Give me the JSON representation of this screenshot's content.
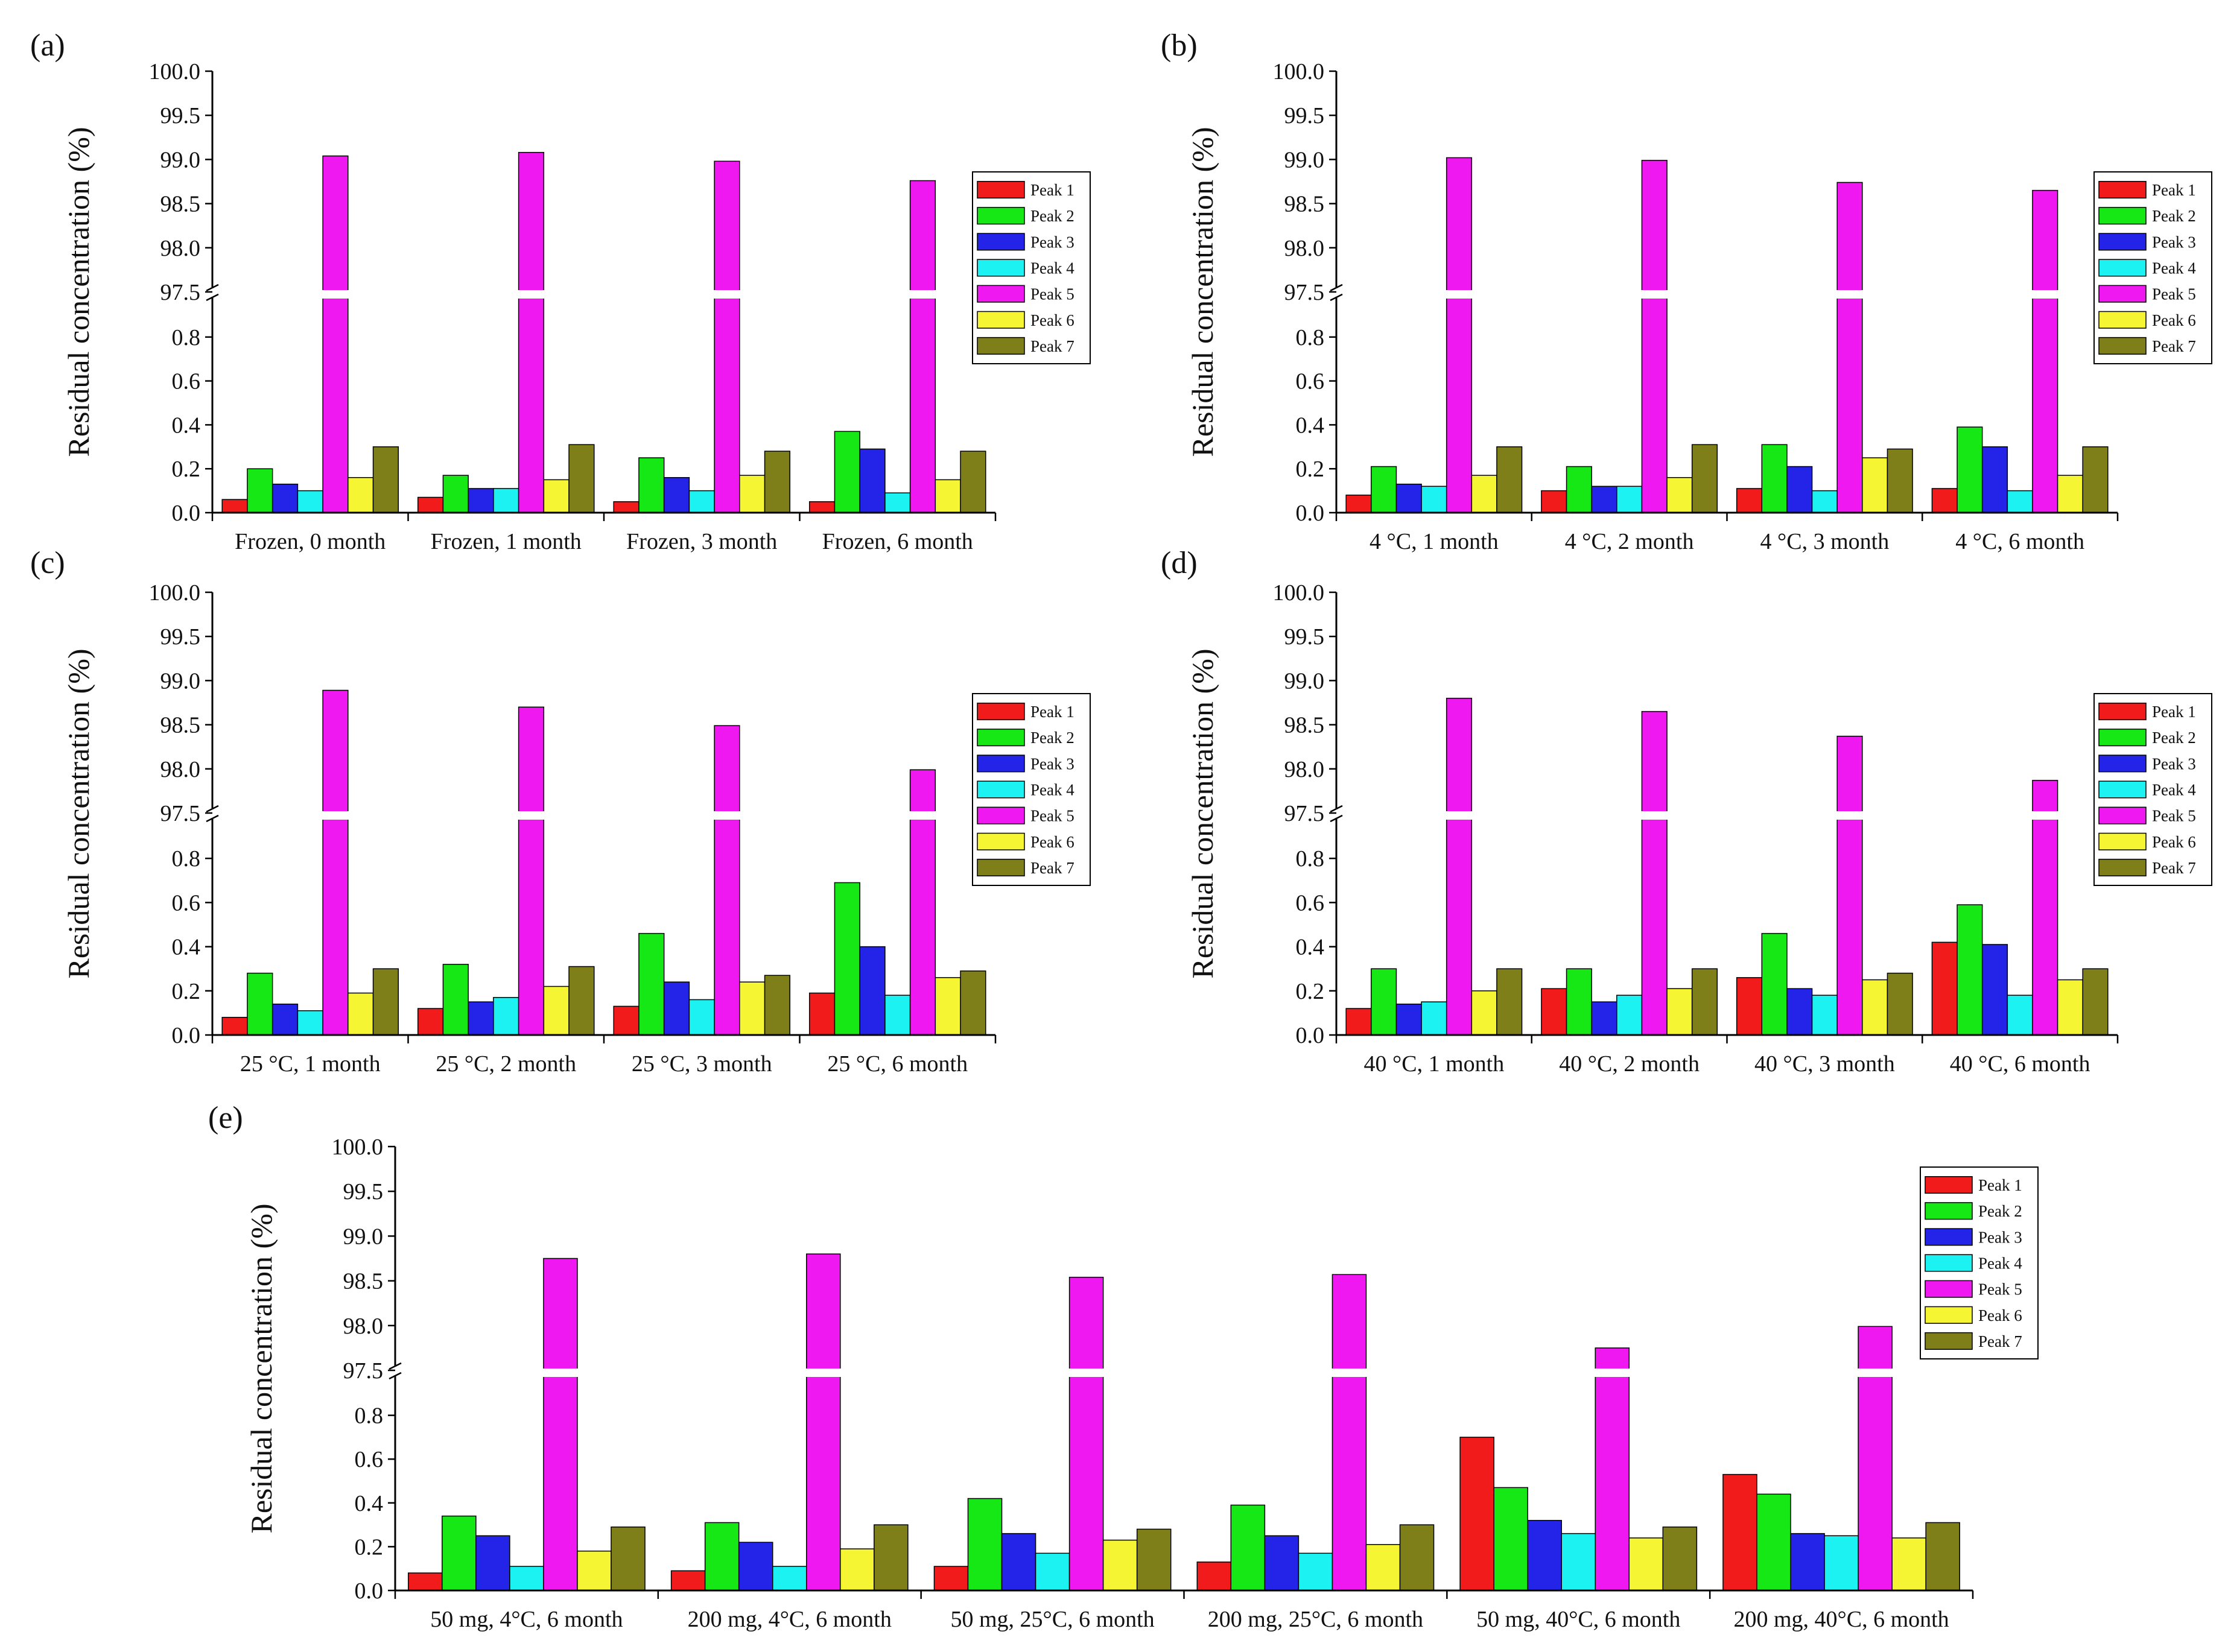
{
  "chart_data": [
    {
      "type": "bar",
      "panel_label": "(a)",
      "ylabel": "Residual concentration (%)",
      "xlabel": "",
      "ylim_lower": [
        0.0,
        1.0
      ],
      "ylim_upper": [
        97.5,
        100.0
      ],
      "yticks_lower": [
        "0.0",
        "0.2",
        "0.4",
        "0.6",
        "0.8"
      ],
      "yticks_upper": [
        "97.5",
        "98.0",
        "98.5",
        "99.0",
        "99.5",
        "100.0"
      ],
      "legend_position": "right",
      "categories": [
        "Frozen, 0 month",
        "Frozen, 1 month",
        "Frozen, 3 month",
        "Frozen, 6 month"
      ],
      "series": [
        {
          "name": "Peak 1",
          "color": "#f21b1b",
          "values": [
            0.06,
            0.07,
            0.05,
            0.05
          ]
        },
        {
          "name": "Peak 2",
          "color": "#15e815",
          "values": [
            0.2,
            0.17,
            0.25,
            0.37
          ]
        },
        {
          "name": "Peak 3",
          "color": "#2424e8",
          "values": [
            0.13,
            0.11,
            0.16,
            0.29
          ]
        },
        {
          "name": "Peak 4",
          "color": "#1cf2f2",
          "values": [
            0.1,
            0.11,
            0.1,
            0.09
          ]
        },
        {
          "name": "Peak 5",
          "color": "#f018f0",
          "values": [
            99.04,
            99.08,
            98.98,
            98.76
          ]
        },
        {
          "name": "Peak 6",
          "color": "#f5f534",
          "values": [
            0.16,
            0.15,
            0.17,
            0.15
          ]
        },
        {
          "name": "Peak 7",
          "color": "#7f7f1a",
          "values": [
            0.3,
            0.31,
            0.28,
            0.28
          ]
        }
      ]
    },
    {
      "type": "bar",
      "panel_label": "(b)",
      "ylabel": "Residual concentration (%)",
      "xlabel": "",
      "ylim_lower": [
        0.0,
        1.0
      ],
      "ylim_upper": [
        97.5,
        100.0
      ],
      "yticks_lower": [
        "0.0",
        "0.2",
        "0.4",
        "0.6",
        "0.8"
      ],
      "yticks_upper": [
        "97.5",
        "98.0",
        "98.5",
        "99.0",
        "99.5",
        "100.0"
      ],
      "legend_position": "right",
      "categories": [
        "4 °C, 1 month",
        "4 °C, 2 month",
        "4 °C, 3 month",
        "4 °C, 6 month"
      ],
      "series": [
        {
          "name": "Peak 1",
          "color": "#f21b1b",
          "values": [
            0.08,
            0.1,
            0.11,
            0.11
          ]
        },
        {
          "name": "Peak 2",
          "color": "#15e815",
          "values": [
            0.21,
            0.21,
            0.31,
            0.39
          ]
        },
        {
          "name": "Peak 3",
          "color": "#2424e8",
          "values": [
            0.13,
            0.12,
            0.21,
            0.3
          ]
        },
        {
          "name": "Peak 4",
          "color": "#1cf2f2",
          "values": [
            0.12,
            0.12,
            0.1,
            0.1
          ]
        },
        {
          "name": "Peak 5",
          "color": "#f018f0",
          "values": [
            99.02,
            98.99,
            98.74,
            98.65
          ]
        },
        {
          "name": "Peak 6",
          "color": "#f5f534",
          "values": [
            0.17,
            0.16,
            0.25,
            0.17
          ]
        },
        {
          "name": "Peak 7",
          "color": "#7f7f1a",
          "values": [
            0.3,
            0.31,
            0.29,
            0.3
          ]
        }
      ]
    },
    {
      "type": "bar",
      "panel_label": "(c)",
      "ylabel": "Residual concentration (%)",
      "xlabel": "",
      "ylim_lower": [
        0.0,
        1.0
      ],
      "ylim_upper": [
        97.5,
        100.0
      ],
      "yticks_lower": [
        "0.0",
        "0.2",
        "0.4",
        "0.6",
        "0.8"
      ],
      "yticks_upper": [
        "97.5",
        "98.0",
        "98.5",
        "99.0",
        "99.5",
        "100.0"
      ],
      "legend_position": "right",
      "categories": [
        "25 °C, 1 month",
        "25 °C, 2 month",
        "25 °C, 3 month",
        "25 °C, 6 month"
      ],
      "series": [
        {
          "name": "Peak 1",
          "color": "#f21b1b",
          "values": [
            0.08,
            0.12,
            0.13,
            0.19
          ]
        },
        {
          "name": "Peak 2",
          "color": "#15e815",
          "values": [
            0.28,
            0.32,
            0.46,
            0.69
          ]
        },
        {
          "name": "Peak 3",
          "color": "#2424e8",
          "values": [
            0.14,
            0.15,
            0.24,
            0.4
          ]
        },
        {
          "name": "Peak 4",
          "color": "#1cf2f2",
          "values": [
            0.11,
            0.17,
            0.16,
            0.18
          ]
        },
        {
          "name": "Peak 5",
          "color": "#f018f0",
          "values": [
            98.89,
            98.7,
            98.49,
            97.99
          ]
        },
        {
          "name": "Peak 6",
          "color": "#f5f534",
          "values": [
            0.19,
            0.22,
            0.24,
            0.26
          ]
        },
        {
          "name": "Peak 7",
          "color": "#7f7f1a",
          "values": [
            0.3,
            0.31,
            0.27,
            0.29
          ]
        }
      ]
    },
    {
      "type": "bar",
      "panel_label": "(d)",
      "ylabel": "Residual concentration (%)",
      "xlabel": "",
      "ylim_lower": [
        0.0,
        1.0
      ],
      "ylim_upper": [
        97.5,
        100.0
      ],
      "yticks_lower": [
        "0.0",
        "0.2",
        "0.4",
        "0.6",
        "0.8"
      ],
      "yticks_upper": [
        "97.5",
        "98.0",
        "98.5",
        "99.0",
        "99.5",
        "100.0"
      ],
      "legend_position": "right",
      "categories": [
        "40 °C, 1 month",
        "40 °C, 2 month",
        "40 °C, 3 month",
        "40 °C, 6 month"
      ],
      "series": [
        {
          "name": "Peak 1",
          "color": "#f21b1b",
          "values": [
            0.12,
            0.21,
            0.26,
            0.42
          ]
        },
        {
          "name": "Peak 2",
          "color": "#15e815",
          "values": [
            0.3,
            0.3,
            0.46,
            0.59
          ]
        },
        {
          "name": "Peak 3",
          "color": "#2424e8",
          "values": [
            0.14,
            0.15,
            0.21,
            0.41
          ]
        },
        {
          "name": "Peak 4",
          "color": "#1cf2f2",
          "values": [
            0.15,
            0.18,
            0.18,
            0.18
          ]
        },
        {
          "name": "Peak 5",
          "color": "#f018f0",
          "values": [
            98.8,
            98.65,
            98.37,
            97.87
          ]
        },
        {
          "name": "Peak 6",
          "color": "#f5f534",
          "values": [
            0.2,
            0.21,
            0.25,
            0.25
          ]
        },
        {
          "name": "Peak 7",
          "color": "#7f7f1a",
          "values": [
            0.3,
            0.3,
            0.28,
            0.3
          ]
        }
      ]
    },
    {
      "type": "bar",
      "panel_label": "(e)",
      "ylabel": "Residual concentration (%)",
      "xlabel": "",
      "ylim_lower": [
        0.0,
        1.0
      ],
      "ylim_upper": [
        97.5,
        100.0
      ],
      "yticks_lower": [
        "0.0",
        "0.2",
        "0.4",
        "0.6",
        "0.8"
      ],
      "yticks_upper": [
        "97.5",
        "98.0",
        "98.5",
        "99.0",
        "99.5",
        "100.0"
      ],
      "legend_position": "top-right",
      "categories": [
        "50 mg, 4°C, 6 month",
        "200 mg, 4°C, 6 month",
        "50 mg, 25°C, 6 month",
        "200 mg, 25°C, 6 month",
        "50 mg, 40°C, 6 month",
        "200 mg, 40°C, 6 month"
      ],
      "series": [
        {
          "name": "Peak 1",
          "color": "#f21b1b",
          "values": [
            0.08,
            0.09,
            0.11,
            0.13,
            0.7,
            0.53
          ]
        },
        {
          "name": "Peak 2",
          "color": "#15e815",
          "values": [
            0.34,
            0.31,
            0.42,
            0.39,
            0.47,
            0.44
          ]
        },
        {
          "name": "Peak 3",
          "color": "#2424e8",
          "values": [
            0.25,
            0.22,
            0.26,
            0.25,
            0.32,
            0.26
          ]
        },
        {
          "name": "Peak 4",
          "color": "#1cf2f2",
          "values": [
            0.11,
            0.11,
            0.17,
            0.17,
            0.26,
            0.25
          ]
        },
        {
          "name": "Peak 5",
          "color": "#f018f0",
          "values": [
            98.75,
            98.8,
            98.54,
            98.57,
            97.75,
            97.99
          ]
        },
        {
          "name": "Peak 6",
          "color": "#f5f534",
          "values": [
            0.18,
            0.19,
            0.23,
            0.21,
            0.24,
            0.24
          ]
        },
        {
          "name": "Peak 7",
          "color": "#7f7f1a",
          "values": [
            0.29,
            0.3,
            0.28,
            0.3,
            0.29,
            0.31
          ]
        }
      ]
    }
  ]
}
